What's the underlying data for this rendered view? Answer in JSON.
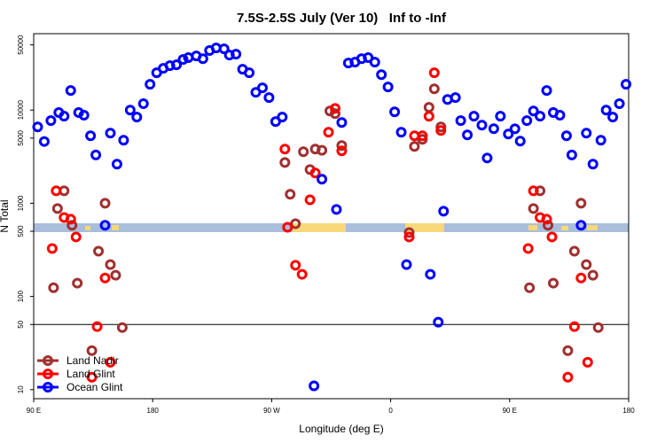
{
  "chart_data": {
    "type": "scatter",
    "title": "7.5S-2.5S July (Ver 10)   Inf to -Inf",
    "x_label": "Longitude (deg E)",
    "y_label": "N Total",
    "ylog": true,
    "xlim": [
      90,
      540
    ],
    "ylim": [
      8,
      66000
    ],
    "xticks": [
      {
        "value": 90,
        "label": "90 E"
      },
      180,
      {
        "value": 270,
        "label": "90 W"
      },
      {
        "value": 360,
        "label": "0"
      },
      {
        "value": 450,
        "label": "90 E"
      },
      {
        "value": 540,
        "label": "180"
      }
    ],
    "yticks": [
      10,
      50,
      100,
      500,
      1000,
      5000,
      10000,
      50000
    ],
    "hline": 50,
    "legend": "bottom-left",
    "series": [
      {
        "name": "Land Nadir",
        "color": "#a03030",
        "x": [
          105,
          108,
          113,
          119,
          123,
          134,
          139,
          144,
          148,
          152,
          157,
          280,
          284,
          288,
          294,
          299,
          303,
          308,
          314,
          318,
          323,
          374,
          378,
          384,
          389,
          393,
          398,
          465,
          468,
          473,
          479,
          483,
          494,
          499,
          504,
          508,
          513,
          517
        ],
        "values": [
          124,
          877,
          1360,
          580,
          139,
          26.2,
          306,
          1000,
          220,
          169,
          46.4,
          2740,
          1250,
          604,
          3570,
          2300,
          3810,
          3700,
          9780,
          9160,
          4160,
          485,
          4070,
          4850,
          10700,
          16900,
          6590,
          124,
          877,
          1360,
          580,
          139,
          26.2,
          306,
          1000,
          220,
          169,
          46.4
        ]
      },
      {
        "name": "Land Glint",
        "color": "#ff0000",
        "x": [
          104,
          107,
          113,
          118,
          122,
          134,
          138,
          144,
          148,
          280,
          282,
          288,
          293,
          299,
          303,
          313,
          318,
          323,
          374,
          378,
          384,
          389,
          393,
          398,
          464,
          468,
          473,
          478,
          482,
          494,
          499,
          504,
          509
        ],
        "values": [
          327,
          1360,
          704,
          674,
          435,
          13.6,
          47.5,
          158,
          19.7,
          3810,
          553,
          216,
          173,
          1090,
          2110,
          5780,
          10400,
          3650,
          435,
          5290,
          5290,
          8580,
          25100,
          6040,
          327,
          1360,
          704,
          674,
          435,
          13.6,
          47.5,
          158,
          19.7
        ]
      },
      {
        "name": "Ocean Glint",
        "color": "#0000ff",
        "x": [
          93,
          98,
          103,
          109,
          113,
          118,
          124,
          128,
          133,
          137,
          144,
          148,
          153,
          158,
          163,
          168,
          173,
          178,
          183,
          188,
          193,
          198,
          203,
          207,
          213,
          218,
          223,
          228,
          234,
          238,
          243,
          248,
          253,
          258,
          263,
          268,
          273,
          278,
          302,
          308,
          319,
          323,
          328,
          333,
          338,
          343,
          348,
          353,
          358,
          363,
          368,
          372,
          390,
          396,
          400,
          403,
          409,
          413,
          418,
          423,
          429,
          433,
          438,
          443,
          449,
          454,
          458,
          463,
          468,
          473,
          478,
          483,
          488,
          493,
          497,
          504,
          508,
          513,
          519,
          523,
          528,
          533,
          538
        ],
        "values": [
          6600,
          4600,
          7700,
          9400,
          8600,
          16200,
          9400,
          8800,
          5300,
          3300,
          580,
          5650,
          2630,
          4750,
          10000,
          8400,
          11700,
          18900,
          25100,
          28000,
          29900,
          30600,
          34900,
          36500,
          38100,
          35600,
          43500,
          46400,
          45400,
          38900,
          39800,
          27400,
          25100,
          15500,
          17300,
          13600,
          7520,
          8400,
          11,
          1810,
          858,
          7360,
          32000,
          32700,
          35600,
          36500,
          32700,
          24000,
          17700,
          9570,
          5780,
          220,
          173,
          53,
          821,
          13000,
          13600,
          7700,
          5410,
          8600,
          6890,
          3060,
          6310,
          8600,
          5530,
          6300,
          4640,
          7700,
          9780,
          8600,
          16200,
          9400,
          8800,
          5300,
          3300,
          580,
          5650,
          2630,
          4750,
          10000,
          8400,
          11700,
          18900
        ]
      }
    ]
  }
}
